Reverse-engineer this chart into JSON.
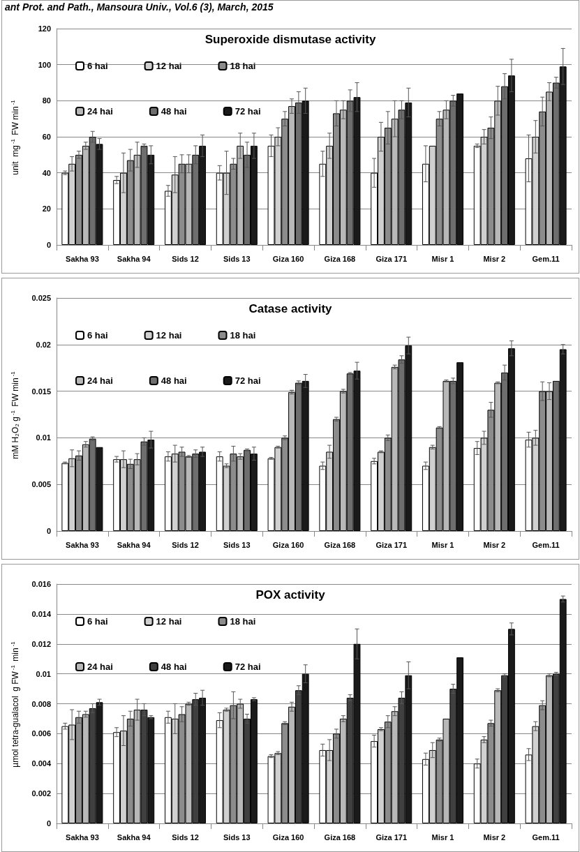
{
  "chart_data": [
    {
      "type": "bar",
      "title": "Superoxide dismutase activity",
      "ylabel": "unit  mg$^{-1}$ FW min$^{-1}$",
      "annotations": [
        "ant Prot. and Path., Mansoura Univ., Vol.6 (3), March, 2015"
      ],
      "categories": [
        "Sakha 93",
        "Sakha 94",
        "Sids 12",
        "Sids 13",
        "Giza 160",
        "Giza 168",
        "Giza 171",
        "Misr 1",
        "Misr 2",
        "Gem.11"
      ],
      "ylim": [
        0,
        120
      ],
      "yticks": [
        0,
        20,
        40,
        60,
        80,
        100,
        120
      ],
      "grid": "y",
      "legend": "top left",
      "series": [
        {
          "name": "6 hai",
          "color": "#ffffff",
          "values": [
            40,
            36,
            30,
            40,
            55,
            45,
            40,
            45,
            55,
            48
          ],
          "errors": [
            1,
            2,
            3,
            4,
            6,
            7,
            8,
            10,
            1,
            13
          ]
        },
        {
          "name": "12 hai",
          "color": "#d0d0d0",
          "values": [
            45,
            40,
            39,
            40,
            60,
            55,
            60,
            55,
            60,
            60
          ],
          "errors": [
            4,
            11,
            10,
            12,
            5,
            7,
            8,
            null,
            4,
            9
          ]
        },
        {
          "name": "18 hai",
          "color": "#8c8c8c",
          "values": [
            50,
            47,
            45,
            45,
            70,
            73,
            65,
            70,
            65,
            74
          ],
          "errors": [
            2,
            6,
            5,
            3,
            4,
            7,
            9,
            4,
            6,
            8
          ]
        },
        {
          "name": "24 hai",
          "color": "#b8b8b8",
          "values": [
            55,
            50,
            45,
            55,
            77,
            75,
            70,
            75,
            80,
            85
          ],
          "errors": [
            2,
            7,
            5,
            7,
            4,
            5,
            10,
            5,
            8,
            5
          ]
        },
        {
          "name": "48 hai",
          "color": "#6e6e6e",
          "values": [
            60,
            55,
            50,
            50,
            79,
            80,
            75,
            80,
            88,
            90
          ],
          "errors": [
            3,
            1,
            5,
            7,
            6,
            6,
            5,
            3,
            7,
            3
          ]
        },
        {
          "name": "72 hai",
          "color": "#1a1a1a",
          "values": [
            56,
            50,
            55,
            55,
            80,
            82,
            79,
            84,
            94,
            99
          ],
          "errors": [
            3,
            5,
            6,
            7,
            7,
            8,
            8,
            null,
            9,
            10
          ]
        }
      ]
    },
    {
      "type": "bar",
      "title": "Catase activity",
      "ylabel": "mM H₂O₂ g$^{-1}$ FW min$^{-1}$",
      "categories": [
        "Sakha 93",
        "Sakha 94",
        "Sids 12",
        "Sids 13",
        "Giza 160",
        "Giza 168",
        "Giza 171",
        "Misr 1",
        "Misr 2",
        "Gem.11"
      ],
      "ylim": [
        0,
        0.025
      ],
      "yticks": [
        0,
        0.005,
        0.01,
        0.015,
        0.02,
        0.025
      ],
      "grid": "y",
      "legend": "top left",
      "series": [
        {
          "name": "6 hai",
          "color": "#ffffff",
          "values": [
            0.0073,
            0.0077,
            0.008,
            0.008,
            0.0078,
            0.007,
            0.0075,
            0.007,
            0.0089,
            0.0098
          ],
          "errors": [
            0.0001,
            0.0003,
            0.0005,
            0.0005,
            0.0001,
            0.0004,
            0.0003,
            0.0004,
            0.0007,
            0.0008
          ]
        },
        {
          "name": "12 hai",
          "color": "#d0d0d0",
          "values": [
            0.0078,
            0.0077,
            0.0083,
            0.007,
            0.009,
            0.0085,
            0.0085,
            0.009,
            0.01,
            0.01
          ],
          "errors": [
            0.0009,
            0.0009,
            0.0009,
            0.0002,
            0.0001,
            0.0007,
            0.0001,
            0.0002,
            0.0007,
            0.0008
          ]
        },
        {
          "name": "18 hai",
          "color": "#8c8c8c",
          "values": [
            0.0081,
            0.0072,
            0.0085,
            0.0083,
            0.01,
            0.012,
            0.01,
            0.0111,
            0.013,
            0.015
          ],
          "errors": [
            0.0005,
            0.0005,
            0.0005,
            0.0008,
            0.0002,
            0.0002,
            0.0003,
            0.0001,
            0.0008,
            0.001
          ]
        },
        {
          "name": "24 hai",
          "color": "#b8b8b8",
          "values": [
            0.0093,
            0.0077,
            0.008,
            0.008,
            0.0149,
            0.015,
            0.0176,
            0.0161,
            0.0159,
            0.015
          ],
          "errors": [
            0.0003,
            0.0006,
            0.0001,
            0.0003,
            0.0002,
            0.0002,
            0.0002,
            0.0001,
            0.0001,
            0.0009
          ]
        },
        {
          "name": "48 hai",
          "color": "#6e6e6e",
          "values": [
            0.0099,
            0.0096,
            0.0083,
            0.0087,
            0.0159,
            0.0169,
            0.0184,
            0.0161,
            0.017,
            0.0161
          ],
          "errors": [
            0.0002,
            0.0004,
            0.0004,
            0.0001,
            0.0002,
            0.0001,
            0.0004,
            0.0003,
            0.0008,
            null
          ]
        },
        {
          "name": "72 hai",
          "color": "#1a1a1a",
          "values": [
            0.009,
            0.0098,
            0.0085,
            0.0083,
            0.0161,
            0.0172,
            0.0199,
            0.0181,
            0.0196,
            0.0195
          ],
          "errors": [
            null,
            0.0009,
            0.0005,
            0.0007,
            0.0007,
            0.0009,
            0.0009,
            null,
            0.0008,
            0.0005
          ]
        }
      ]
    },
    {
      "type": "bar",
      "title": "POX activity",
      "ylabel": "µmol tetra-gualacol  g FW$^{-1}$ min$^{-1}$",
      "categories": [
        "Sakha 93",
        "Sakha 94",
        "Sids 12",
        "Sids 13",
        "Giza 160",
        "Giza 168",
        "Giza 171",
        "Misr 1",
        "Misr 2",
        "Gem.11"
      ],
      "ylim": [
        0,
        0.016
      ],
      "yticks": [
        0,
        0.002,
        0.004,
        0.006,
        0.008,
        0.01,
        0.012,
        0.014,
        0.016
      ],
      "grid": "y",
      "legend": "top left",
      "series": [
        {
          "name": "6 hai",
          "color": "#ffffff",
          "values": [
            0.0065,
            0.0061,
            0.0071,
            0.0069,
            0.0045,
            0.0049,
            0.0055,
            0.0043,
            0.004,
            0.0046
          ],
          "errors": [
            0.0002,
            0.0003,
            0.0004,
            0.0005,
            0.0001,
            0.0004,
            0.0004,
            0.0004,
            0.0003,
            0.0004
          ]
        },
        {
          "name": "12 hai",
          "color": "#d0d0d0",
          "values": [
            0.0066,
            0.0062,
            0.007,
            0.0076,
            0.0047,
            0.0049,
            0.0063,
            0.0049,
            0.0056,
            0.0065
          ],
          "errors": [
            0.001,
            0.001,
            0.001,
            0.0001,
            0.0001,
            0.0007,
            0.0001,
            0.0005,
            0.0002,
            0.0003
          ]
        },
        {
          "name": "18 hai",
          "color": "#8c8c8c",
          "values": [
            0.0071,
            0.007,
            0.0073,
            0.0079,
            0.0067,
            0.006,
            0.0068,
            0.0056,
            0.0067,
            0.0079
          ],
          "errors": [
            0.0004,
            0.0005,
            0.0005,
            0.0009,
            0.0001,
            0.0003,
            0.0004,
            0.0001,
            0.0002,
            0.0003
          ]
        },
        {
          "name": "24 hai",
          "color": "#b8b8b8",
          "values": [
            0.0073,
            0.0076,
            0.008,
            0.008,
            0.0078,
            0.007,
            0.0075,
            0.007,
            0.0089,
            0.0099
          ],
          "errors": [
            0.0002,
            0.0007,
            0.0001,
            0.0003,
            0.0003,
            0.0002,
            0.0003,
            null,
            0.0001,
            0.0001
          ]
        },
        {
          "name": "48 hai",
          "color": "#404040",
          "values": [
            0.0077,
            0.0076,
            0.0083,
            0.007,
            0.0089,
            0.0084,
            0.0084,
            0.009,
            0.0099,
            0.01
          ],
          "errors": [
            0.0003,
            0.0004,
            0.0004,
            0.0003,
            0.0003,
            0.0002,
            0.0004,
            0.0003,
            0.0001,
            0.0001
          ]
        },
        {
          "name": "72 hai",
          "color": "#1a1a1a",
          "values": [
            0.0081,
            0.0071,
            0.0084,
            0.0083,
            0.01,
            0.012,
            0.0099,
            0.0111,
            0.013,
            0.015
          ],
          "errors": [
            0.0002,
            0.0001,
            0.0005,
            0.0001,
            0.0006,
            0.001,
            0.0009,
            null,
            0.0004,
            0.0002
          ]
        }
      ]
    }
  ]
}
